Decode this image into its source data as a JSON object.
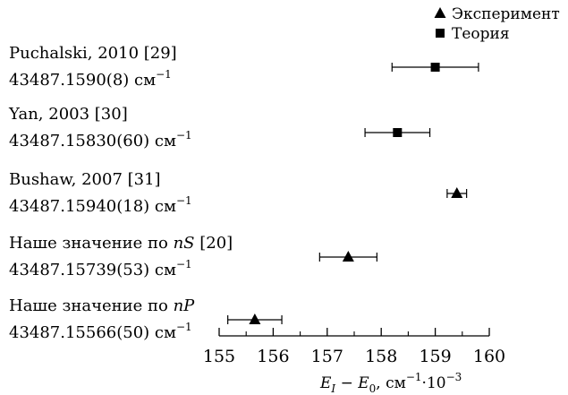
{
  "chart_data": {
    "type": "scatter",
    "title": "",
    "xlabel": {
      "base_left": "E",
      "sub1": "I",
      "mid": " − E",
      "sub2": "0",
      "unit": ", см",
      "unit_sup": "−1",
      "scale": "·10",
      "scale_sup": "−3"
    },
    "xlim": [
      155,
      160
    ],
    "xticks": [
      "155",
      "156",
      "157",
      "158",
      "159",
      "160"
    ],
    "grid": false,
    "legend_position": "top-right",
    "legend": [
      {
        "marker": "triangle",
        "label": "Эксперимент"
      },
      {
        "marker": "square",
        "label": "Теория"
      }
    ],
    "points": [
      {
        "line1": "Puchalski, 2010 [29]",
        "value": "43487.1590(8) см",
        "unit_sup": "−1",
        "x": 159.0,
        "err": 0.8,
        "marker": "square"
      },
      {
        "line1": "Yan, 2003 [30]",
        "value": "43487.15830(60) см",
        "unit_sup": "−1",
        "x": 158.3,
        "err": 0.6,
        "marker": "square"
      },
      {
        "line1": "Bushaw, 2007 [31]",
        "value": "43487.15940(18) см",
        "unit_sup": "−1",
        "x": 159.4,
        "err": 0.18,
        "marker": "triangle"
      },
      {
        "line1_text": "Наше значение по ",
        "line1_ital": "nS",
        "line1_tail": " [20]",
        "value": "43487.15739(53) см",
        "unit_sup": "−1",
        "x": 157.39,
        "err": 0.53,
        "marker": "triangle"
      },
      {
        "line1_text": "Наше значение по ",
        "line1_ital": "nP",
        "line1_tail": "",
        "value": "43487.15566(50) см",
        "unit_sup": "−1",
        "x": 155.66,
        "err": 0.5,
        "marker": "triangle"
      }
    ]
  }
}
